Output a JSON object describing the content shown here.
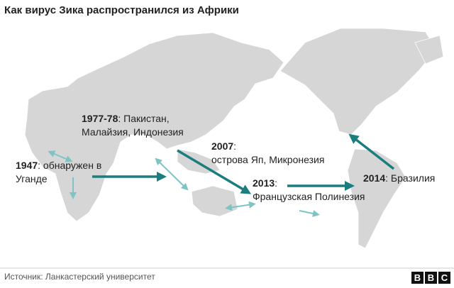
{
  "header": {
    "title": "Как вирус Зика распространился из Африки"
  },
  "labels": [
    {
      "year": "1947",
      "rest": ": обнаружен в",
      "line2": "Уганде"
    },
    {
      "year": "1977-78",
      "rest": ": Пакистан,",
      "line2": "Малайзия, Индонезия"
    },
    {
      "year": "2007",
      "rest": ":",
      "line2": "острова Яп, Микронезия"
    },
    {
      "year": "2013",
      "rest": ":",
      "line2": "Французская Полинезия"
    },
    {
      "year": "2014",
      "rest": ": Бразилия"
    }
  ],
  "footer": {
    "source": "Источник: Ланкастерский университет",
    "logo": [
      "B",
      "B",
      "C"
    ]
  }
}
